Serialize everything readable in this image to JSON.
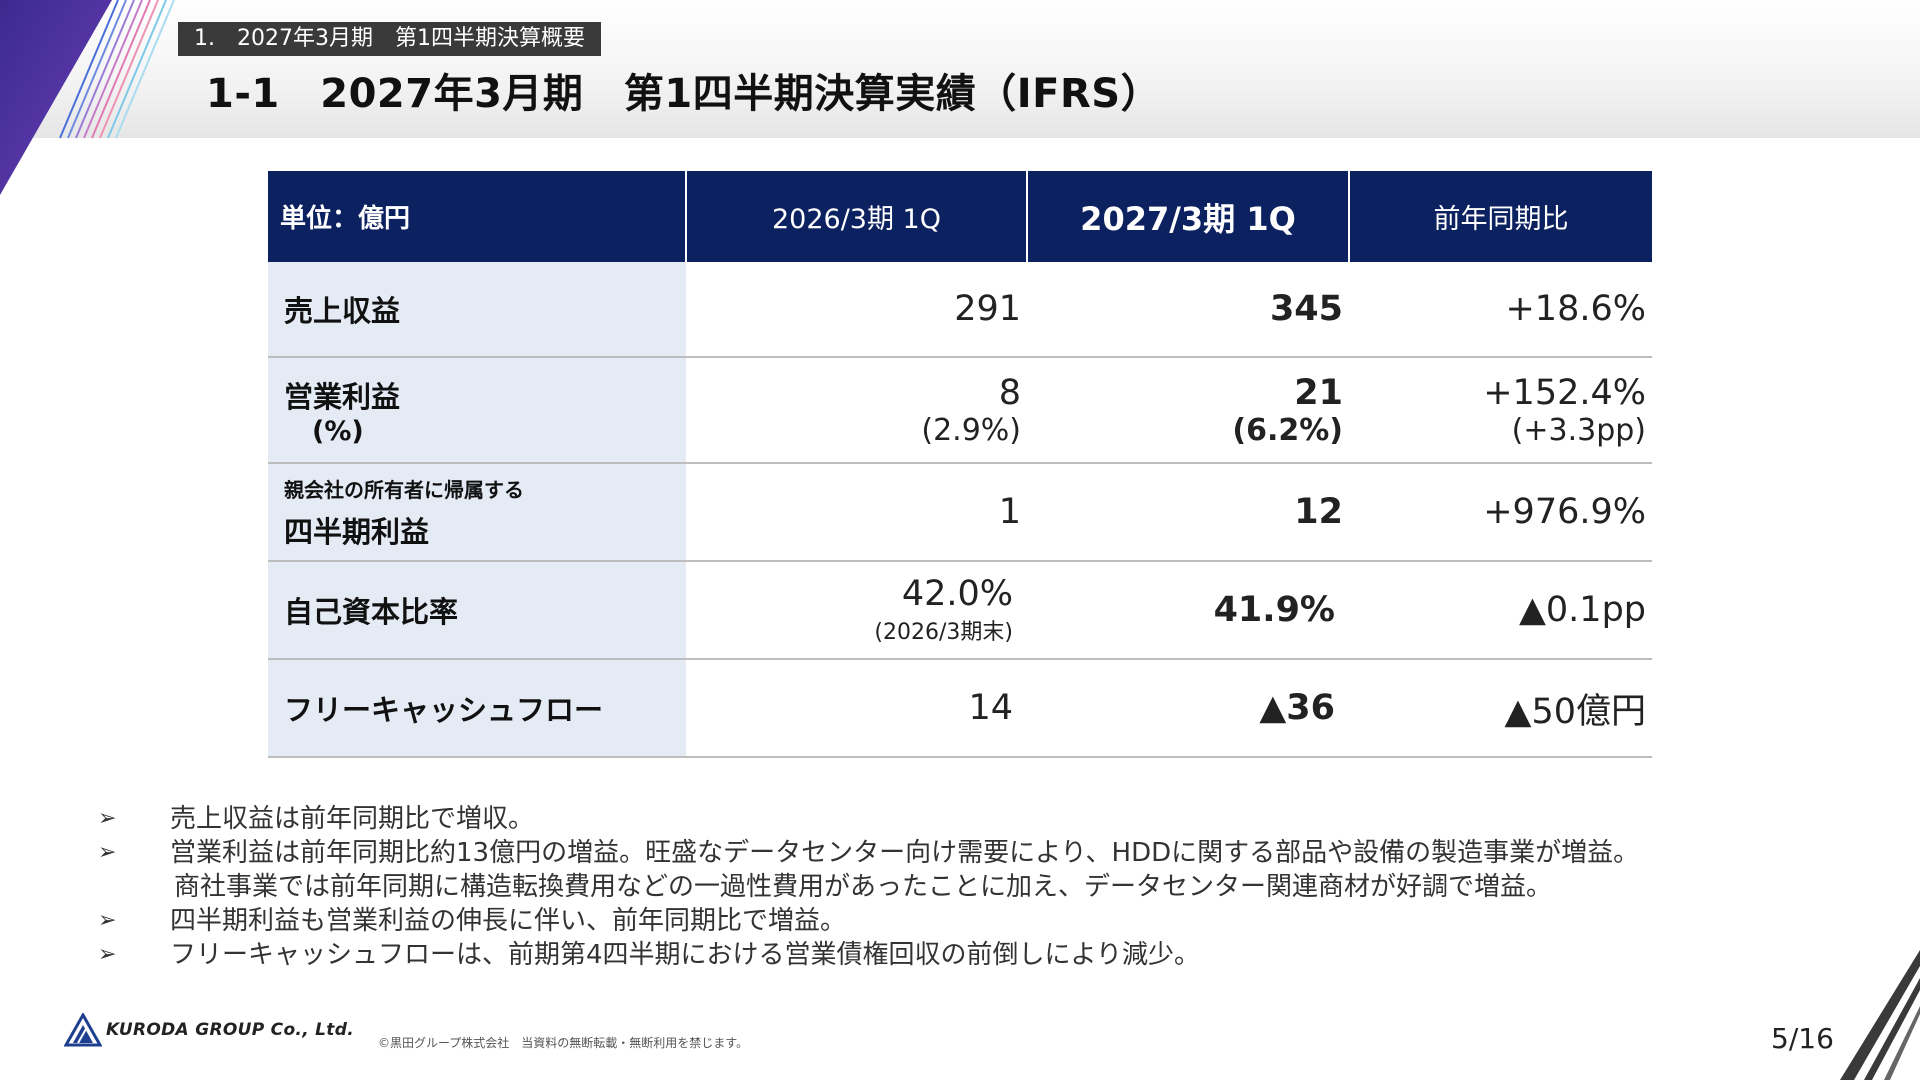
{
  "header": {
    "section_tag": "1.　2027年3月期　第1四半期決算概要",
    "title": "1-1　2027年3月期　第1四半期決算実績（IFRS）"
  },
  "table": {
    "headers": {
      "unit": "単位：億円",
      "prev": "2026/3期 1Q",
      "curr": "2027/3期 1Q",
      "yoy": "前年同期比"
    },
    "rows": [
      {
        "label": "売上収益",
        "prev": "291",
        "curr": "345",
        "yoy": "+18.6%"
      },
      {
        "label": "営業利益",
        "label_sub": "(%)",
        "prev": "8",
        "prev_sub": "(2.9%)",
        "curr": "21",
        "curr_sub": "(6.2%)",
        "yoy": "+152.4%",
        "yoy_sub": "(+3.3pp)"
      },
      {
        "label_small": "親会社の所有者に帰属する",
        "label": "四半期利益",
        "prev": "1",
        "curr": "12",
        "yoy": "+976.9%"
      },
      {
        "label": "自己資本比率",
        "prev": "42.0%",
        "prev_sub": "(2026/3期末)",
        "curr": "41.9%",
        "yoy": "▲0.1pp"
      },
      {
        "label": "フリーキャッシュフロー",
        "prev": "14",
        "curr": "▲36",
        "yoy": "▲50億円"
      }
    ]
  },
  "notes": [
    {
      "mark": "➢",
      "text": "売上収益は前年同期比で増収。"
    },
    {
      "mark": "➢",
      "text": "営業利益は前年同期比約13億円の増益。旺盛なデータセンター向け需要により、HDDに関する部品や設備の製造事業が増益。",
      "cont": "商社事業では前年同期に構造転換費用などの一過性費用があったことに加え、データセンター関連商材が好調で増益。"
    },
    {
      "mark": "➢",
      "text": "四半期利益も営業利益の伸長に伴い、前年同期比で増益。"
    },
    {
      "mark": "➢",
      "text": "フリーキャッシュフローは、前期第4四半期における営業債権回収の前倒しにより減少。"
    }
  ],
  "footer": {
    "logo_text": "KURODA GROUP Co., Ltd.",
    "copyright": "©黒田グループ株式会社　当資料の無断転載・無断利用を禁じます。",
    "page": "5/16"
  },
  "colors": {
    "navy": "#0c2160",
    "label_bg": "#e5ebf5"
  },
  "icons": {
    "bullet": "arrow-bullet-icon",
    "logo": "kuroda-logo-icon"
  }
}
